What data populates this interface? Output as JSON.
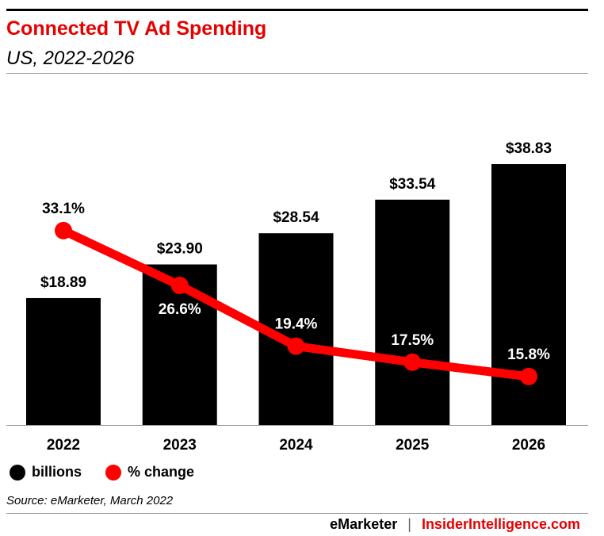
{
  "header": {
    "title": "Connected TV Ad Spending",
    "subtitle": "US, 2022-2026"
  },
  "chart_data": {
    "type": "bar+line",
    "categories": [
      "2022",
      "2023",
      "2024",
      "2025",
      "2026"
    ],
    "series": [
      {
        "name": "billions",
        "type": "bar",
        "values": [
          18.89,
          23.9,
          28.54,
          33.54,
          38.83
        ],
        "labels": [
          "$18.89",
          "$23.90",
          "$28.54",
          "$33.54",
          "$38.83"
        ],
        "color": "#000000"
      },
      {
        "name": "% change",
        "type": "line",
        "values": [
          33.1,
          26.6,
          19.4,
          17.5,
          15.8
        ],
        "labels": [
          "33.1%",
          "26.6%",
          "19.4%",
          "17.5%",
          "15.8%"
        ],
        "color": "#ff0000"
      }
    ],
    "grid": false,
    "legend": "bottom-left"
  },
  "legend": {
    "items": [
      "billions",
      "% change"
    ]
  },
  "source": "Source: eMarketer, March 2022",
  "footer": {
    "brand1": "eMarketer",
    "sep": "|",
    "brand2": "InsiderIntelligence.com"
  },
  "colors": {
    "title": "#e60000",
    "line": "#ff0000",
    "bar": "#000000"
  }
}
